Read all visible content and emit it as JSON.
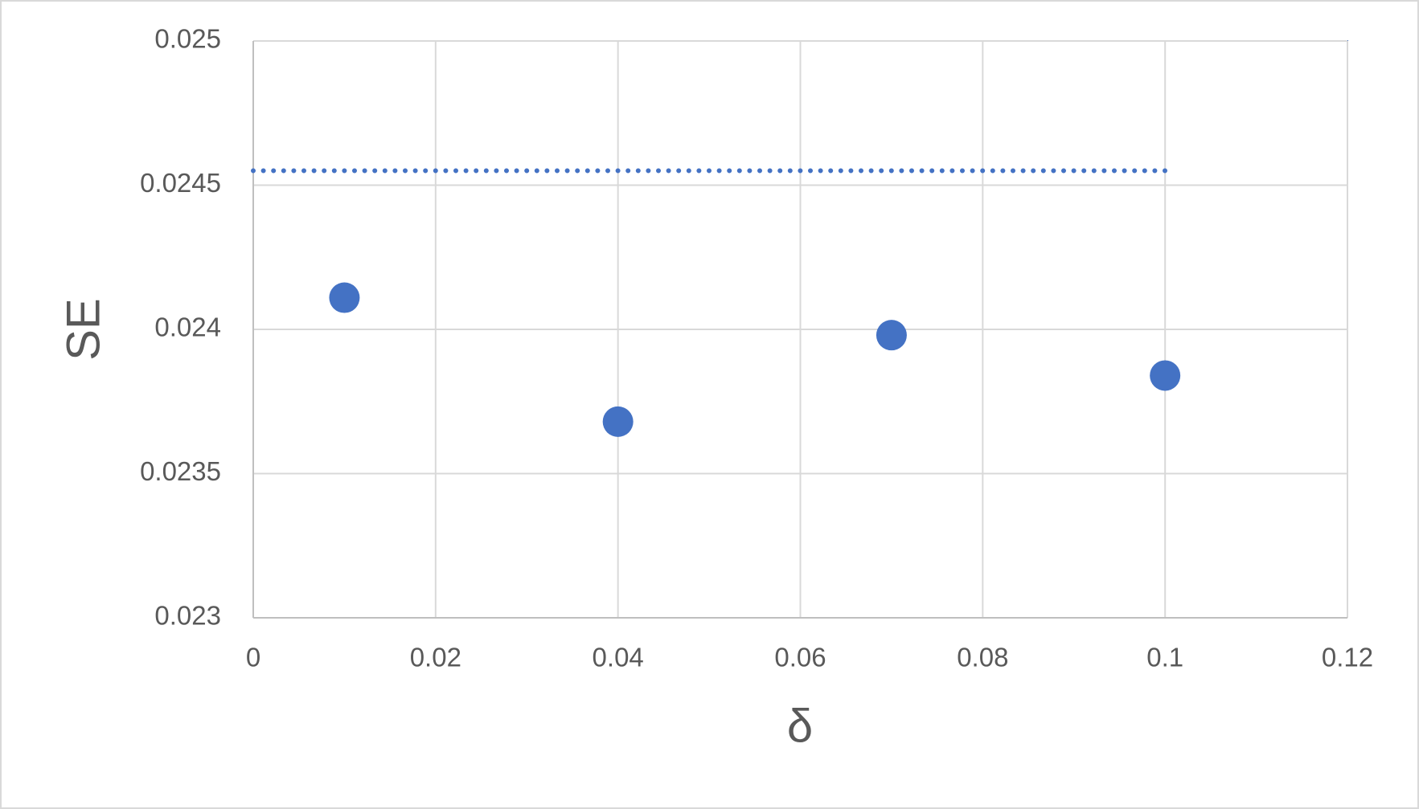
{
  "chart_data": {
    "type": "scatter",
    "x_label": "δ",
    "y_label": "SE",
    "xlim": [
      0,
      0.12
    ],
    "xticks": [
      0,
      0.02,
      0.04,
      0.06,
      0.08,
      0.1,
      0.12
    ],
    "ylim": [
      0.023,
      0.025
    ],
    "yticks": [
      0.023,
      0.0235,
      0.024,
      0.0245,
      0.025
    ],
    "grid": true,
    "series": [
      {
        "type": "scatter",
        "color": "#4472c4",
        "x": [
          0.01,
          0.04,
          0.07,
          0.1
        ],
        "values": [
          0.02411,
          0.02368,
          0.02398,
          0.02384
        ]
      },
      {
        "type": "line",
        "style": "dotted",
        "color": "#4472c4",
        "x": [
          0,
          0.1
        ],
        "values": [
          0.02455,
          0.02455
        ]
      }
    ]
  }
}
